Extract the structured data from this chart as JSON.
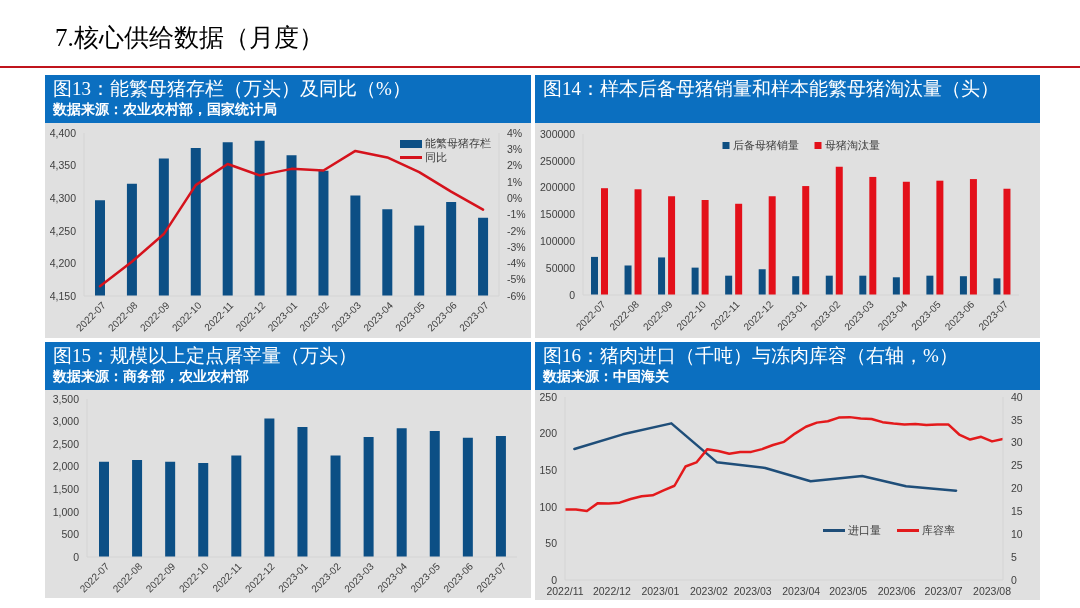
{
  "chart_data": [
    {
      "type": "other",
      "title": "7.核心供给数据（月度）"
    },
    {
      "type": "bar",
      "title": "图13：能繁母猪存栏（万头）及同比（%）",
      "subtitle": "数据来源：农业农村部，国家统计局",
      "categories": [
        "2022-07",
        "2022-08",
        "2022-09",
        "2022-10",
        "2022-11",
        "2022-12",
        "2023-01",
        "2023-02",
        "2023-03",
        "2023-04",
        "2023-05",
        "2023-06",
        "2023-07"
      ],
      "series": [
        {
          "name": "能繁母猪存栏",
          "color": "#0c4f85",
          "values": [
            4297,
            4322,
            4361,
            4377,
            4386,
            4388,
            4366,
            4342,
            4304,
            4283,
            4258,
            4294,
            4270
          ]
        },
        {
          "name": "同比",
          "type": "line",
          "axis": "y2",
          "color": "#d5121c",
          "values": [
            -5.4,
            -3.9,
            -2.2,
            0.8,
            2.1,
            1.4,
            1.8,
            1.7,
            2.9,
            2.5,
            1.6,
            0.4,
            -0.7
          ]
        }
      ],
      "ylim": [
        4150,
        4400
      ],
      "yticks": [
        {
          "value": 4150,
          "label": "4,150"
        },
        {
          "value": 4200,
          "label": "4,200"
        },
        {
          "value": 4250,
          "label": "4,250"
        },
        {
          "value": 4300,
          "label": "4,300"
        },
        {
          "value": 4350,
          "label": "4,350"
        },
        {
          "value": 4400,
          "label": "4,400"
        }
      ],
      "y2lim": [
        -6,
        4
      ],
      "y2ticks": [
        {
          "value": -6,
          "label": "-6%"
        },
        {
          "value": -5,
          "label": "-5%"
        },
        {
          "value": -4,
          "label": "-4%"
        },
        {
          "value": -3,
          "label": "-3%"
        },
        {
          "value": -2,
          "label": "-2%"
        },
        {
          "value": -1,
          "label": "-1%"
        },
        {
          "value": 0,
          "label": "0%"
        },
        {
          "value": 1,
          "label": "1%"
        },
        {
          "value": 2,
          "label": "2%"
        },
        {
          "value": 3,
          "label": "3%"
        },
        {
          "value": 4,
          "label": "4%"
        }
      ],
      "legend": "top right"
    },
    {
      "type": "bar",
      "title": "图14：样本后备母猪销量和样本能繁母猪淘汰量（头）",
      "categories": [
        "2022-07",
        "2022-08",
        "2022-09",
        "2022-10",
        "2022-11",
        "2022-12",
        "2023-01",
        "2023-02",
        "2023-03",
        "2023-04",
        "2023-05",
        "2023-06",
        "2023-07"
      ],
      "series": [
        {
          "name": "后备母猪销量",
          "color": "#0e4f82",
          "values": [
            71000,
            55000,
            70000,
            51000,
            36000,
            48000,
            35000,
            36000,
            36000,
            33000,
            36000,
            35000,
            31000
          ]
        },
        {
          "name": "母猪淘汰量",
          "color": "#e3101a",
          "values": [
            199000,
            197000,
            184000,
            177000,
            170000,
            184000,
            203000,
            239000,
            220000,
            211000,
            213000,
            216000,
            198000
          ]
        }
      ],
      "ylim": [
        0,
        300000
      ],
      "yticks": [
        0,
        50000,
        100000,
        150000,
        200000,
        250000,
        300000
      ],
      "legend": "top"
    },
    {
      "type": "bar",
      "title": "图15：规模以上定点屠宰量（万头）",
      "subtitle": "数据来源：商务部，农业农村部",
      "categories": [
        "2022-07",
        "2022-08",
        "2022-09",
        "2022-10",
        "2022-11",
        "2022-12",
        "2023-01",
        "2023-02",
        "2023-03",
        "2023-04",
        "2023-05",
        "2023-06",
        "2023-07"
      ],
      "values": [
        2110,
        2150,
        2110,
        2080,
        2250,
        3070,
        2880,
        2250,
        2660,
        2850,
        2790,
        2640,
        2680
      ],
      "color": "#0c4f85",
      "ylim": [
        0,
        3500
      ],
      "yticks": [
        0,
        500,
        {
          "value": 1000,
          "label": "1,000"
        },
        {
          "value": 1500,
          "label": "1,500"
        },
        {
          "value": 2000,
          "label": "2,000"
        },
        {
          "value": 2500,
          "label": "2,500"
        },
        {
          "value": 3000,
          "label": "3,000"
        },
        {
          "value": 3500,
          "label": "3,500"
        }
      ]
    },
    {
      "type": "line",
      "title": "图16：猪肉进口（千吨）与冻肉库容（右轴，%）",
      "subtitle": "数据来源：中国海关",
      "series": [
        {
          "name": "进口量",
          "color": "#1f4e79",
          "x": [
            "2022-11-07",
            "2022-12-08",
            "2023-01-08",
            "2023-02-06",
            "2023-03-09",
            "2023-04-07",
            "2023-05-10",
            "2023-06-07",
            "2023-07-09"
          ],
          "values": [
            179,
            199,
            214,
            161,
            153,
            135,
            142,
            128,
            122
          ]
        },
        {
          "name": "库容率",
          "color": "#e31a1c",
          "axis": "y2",
          "x": [
            "2022-11-01",
            "2022-11-08",
            "2022-11-15",
            "2022-11-22",
            "2022-11-29",
            "2022-12-06",
            "2022-12-13",
            "2022-12-20",
            "2022-12-27",
            "2023-01-03",
            "2023-01-10",
            "2023-01-17",
            "2023-01-24",
            "2023-01-31",
            "2023-02-07",
            "2023-02-14",
            "2023-02-21",
            "2023-02-28",
            "2023-03-07",
            "2023-03-14",
            "2023-03-21",
            "2023-03-28",
            "2023-04-04",
            "2023-04-11",
            "2023-04-18",
            "2023-04-25",
            "2023-05-02",
            "2023-05-09",
            "2023-05-16",
            "2023-05-23",
            "2023-05-30",
            "2023-06-06",
            "2023-06-13",
            "2023-06-20",
            "2023-06-27",
            "2023-07-04",
            "2023-07-11",
            "2023-07-18",
            "2023-07-25",
            "2023-08-01",
            "2023-08-08"
          ],
          "values": [
            15.4,
            15.4,
            15.1,
            16.8,
            16.7,
            16.9,
            17.7,
            18.3,
            18.5,
            19.6,
            20.6,
            24.8,
            25.7,
            28.6,
            28.2,
            27.6,
            28.0,
            28.0,
            28.6,
            29.5,
            30.2,
            32.0,
            33.5,
            34.4,
            34.7,
            35.5,
            35.6,
            35.3,
            35.2,
            34.5,
            34.2,
            34.0,
            34.1,
            33.9,
            34.0,
            34.0,
            31.8,
            30.7,
            31.3,
            30.3,
            30.8
          ]
        }
      ],
      "xlim": [
        "2022-11-01",
        "2023-08-08"
      ],
      "xticks": [
        {
          "value": "2022-11-01",
          "label": "2022/11"
        },
        {
          "value": "2022-12-01",
          "label": "2022/12"
        },
        {
          "value": "2023-01-01",
          "label": "2023/01"
        },
        {
          "value": "2023-02-01",
          "label": "2023/02"
        },
        {
          "value": "2023-03-01",
          "label": "2023/03"
        },
        {
          "value": "2023-04-01",
          "label": "2023/04"
        },
        {
          "value": "2023-05-01",
          "label": "2023/05"
        },
        {
          "value": "2023-06-01",
          "label": "2023/06"
        },
        {
          "value": "2023-07-01",
          "label": "2023/07"
        },
        {
          "value": "2023-08-01",
          "label": "2023/08"
        }
      ],
      "ylim": [
        0,
        250
      ],
      "yticks": [
        0,
        50,
        100,
        150,
        200,
        250
      ],
      "y2lim": [
        0,
        40
      ],
      "y2ticks": [
        0,
        5,
        10,
        15,
        20,
        25,
        30,
        35,
        40
      ],
      "legend": "bottom right"
    }
  ]
}
